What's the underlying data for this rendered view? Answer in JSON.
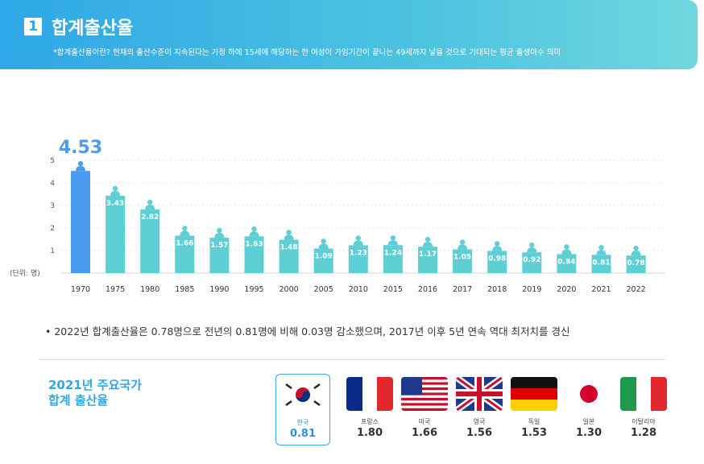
{
  "header": {
    "number": "1",
    "title": "합계출산율",
    "subtitle": "*합계출산율이란? 현재의 출산수준이 지속된다는 가정 하에 15세에 해당하는 한 여성이 가임기간이 끝나는 49세까지 낳을 것으로 기대되는 평균 출생아수 의미"
  },
  "chart_data": {
    "type": "bar",
    "title": "",
    "ylabel": "(단위: 명)",
    "ylim": [
      0,
      5
    ],
    "yticks": [
      1,
      2,
      3,
      4,
      5
    ],
    "grid": true,
    "categories": [
      "1970",
      "1975",
      "1980",
      "1985",
      "1990",
      "1995",
      "2000",
      "2005",
      "2010",
      "2015",
      "2016",
      "2017",
      "2018",
      "2019",
      "2020",
      "2021",
      "2022"
    ],
    "values": [
      4.53,
      3.43,
      2.82,
      1.66,
      1.57,
      1.63,
      1.48,
      1.09,
      1.23,
      1.24,
      1.17,
      1.05,
      0.98,
      0.92,
      0.84,
      0.81,
      0.78
    ],
    "labels": [
      "4.53",
      "3.43",
      "2.82",
      "1.66",
      "1.57",
      "1.63",
      "1.48",
      "1.09",
      "1.23",
      "1.24",
      "1.17",
      "1.05",
      "0.98",
      "0.92",
      "0.84",
      "0.81",
      "0.78"
    ],
    "highlight_index": 0,
    "colors": {
      "bar": "#5fcfd6",
      "highlight": "#4a9cf0",
      "label_highlight": "#4a9cf0"
    }
  },
  "note": "• 2022년 합계출산율은 0.78명으로 전년의 0.81명에 비해 0.03명 감소했으며, 2017년 이후 5년 연속 역대 최저치를 경신",
  "comparison": {
    "title_line1": "2021년 주요국가",
    "title_line2": "합계 출산율",
    "countries": [
      {
        "name": "한국",
        "value": "0.81",
        "flag": "korea-flag"
      },
      {
        "name": "프랑스",
        "value": "1.80",
        "flag": "france-flag"
      },
      {
        "name": "미국",
        "value": "1.66",
        "flag": "usa-flag"
      },
      {
        "name": "영국",
        "value": "1.56",
        "flag": "uk-flag"
      },
      {
        "name": "독일",
        "value": "1.53",
        "flag": "germany-flag"
      },
      {
        "name": "일본",
        "value": "1.30",
        "flag": "japan-flag"
      },
      {
        "name": "이탈리아",
        "value": "1.28",
        "flag": "italy-flag"
      }
    ]
  }
}
